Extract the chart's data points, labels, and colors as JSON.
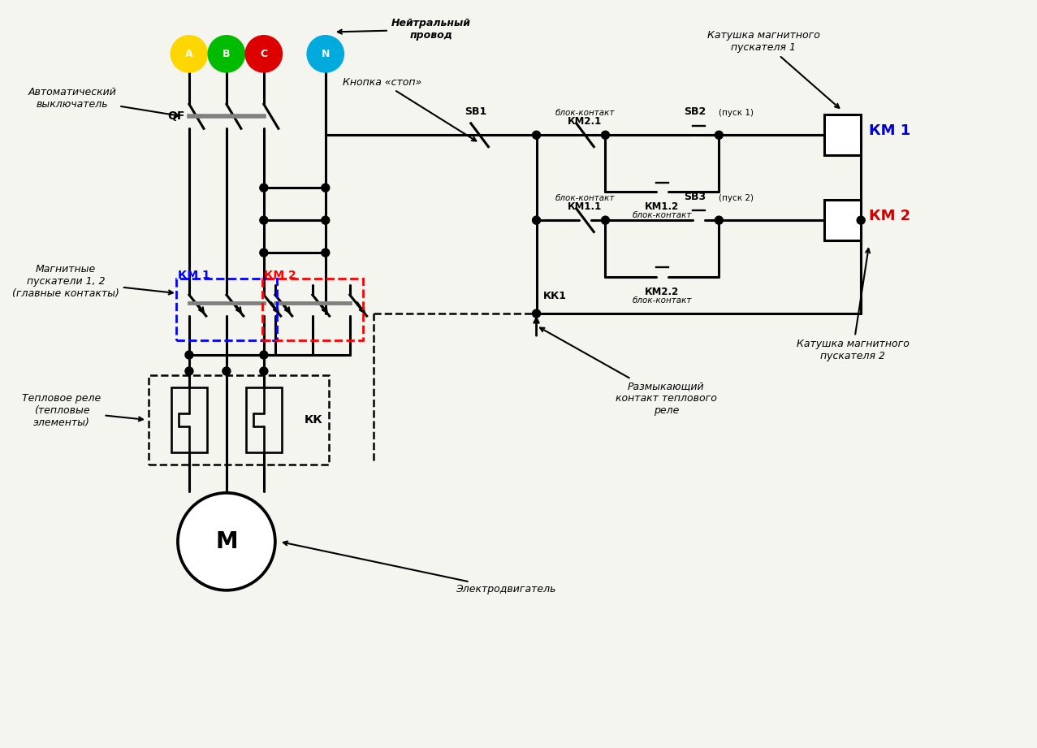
{
  "bg_color": "#f5f5f0",
  "line_color": "#000000",
  "line_width": 2.2,
  "phase_colors": {
    "A": "#FFD700",
    "B": "#00BB00",
    "C": "#DD0000",
    "N": "#00AADD"
  },
  "km1_color": "#0000CC",
  "km2_color": "#CC0000",
  "label_auto": "Автоматический\nвыключатель",
  "label_neutral": "Нейтральный\nпровод",
  "label_stop": "Кнопка «стоп»",
  "label_mag": "Магнитные\nпускатели 1, 2\n(главные контакты)",
  "label_therm": "Тепловое реле\n(тепловые\nэлементы)",
  "label_motor": "Электродвигатель",
  "label_coil1": "Катушка магнитного\nпускателя 1",
  "label_coil2": "Катушка магнитного\nпускателя 2",
  "label_therm_contact": "Размыкающий\nконтакт теплового\nреле"
}
